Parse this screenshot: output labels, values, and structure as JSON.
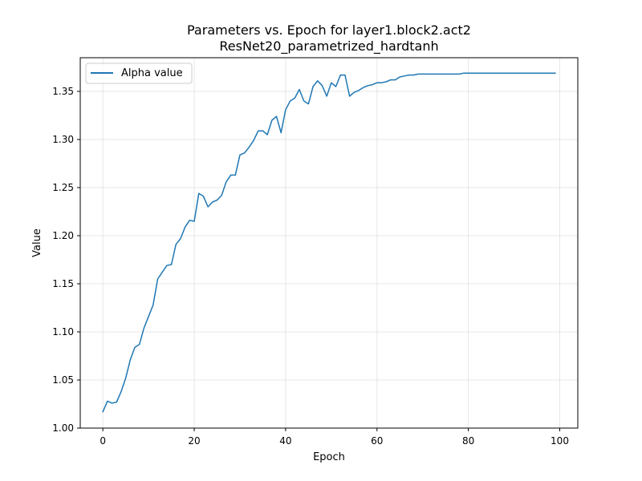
{
  "chart_data": {
    "type": "line",
    "title": "Parameters vs. Epoch for layer1.block2.act2",
    "subtitle": "ResNet20_parametrized_hardtanh",
    "xlabel": "Epoch",
    "ylabel": "Value",
    "xlim": [
      -4.95,
      103.95
    ],
    "ylim": [
      1.0,
      1.385
    ],
    "xticks": [
      0,
      20,
      40,
      60,
      80,
      100
    ],
    "yticks": [
      1.0,
      1.05,
      1.1,
      1.15,
      1.2,
      1.25,
      1.3,
      1.35
    ],
    "ytick_labels": [
      "1.00",
      "1.05",
      "1.10",
      "1.15",
      "1.20",
      "1.25",
      "1.30",
      "1.35"
    ],
    "grid": true,
    "legend": "top-left",
    "series": [
      {
        "name": "Alpha value",
        "color": "#1f77b4",
        "x": [
          0,
          1,
          2,
          3,
          4,
          5,
          6,
          7,
          8,
          9,
          10,
          11,
          12,
          13,
          14,
          15,
          16,
          17,
          18,
          19,
          20,
          21,
          22,
          23,
          24,
          25,
          26,
          27,
          28,
          29,
          30,
          31,
          32,
          33,
          34,
          35,
          36,
          37,
          38,
          39,
          40,
          41,
          42,
          43,
          44,
          45,
          46,
          47,
          48,
          49,
          50,
          51,
          52,
          53,
          54,
          55,
          56,
          57,
          58,
          59,
          60,
          61,
          62,
          63,
          64,
          65,
          66,
          67,
          68,
          69,
          70,
          71,
          72,
          73,
          74,
          75,
          76,
          77,
          78,
          79,
          80,
          81,
          82,
          83,
          84,
          85,
          86,
          87,
          88,
          89,
          90,
          91,
          92,
          93,
          94,
          95,
          96,
          97,
          98,
          99
        ],
        "values": [
          1.017,
          1.028,
          1.026,
          1.027,
          1.038,
          1.052,
          1.071,
          1.084,
          1.087,
          1.104,
          1.116,
          1.128,
          1.155,
          1.162,
          1.169,
          1.17,
          1.191,
          1.197,
          1.209,
          1.216,
          1.215,
          1.244,
          1.241,
          1.23,
          1.235,
          1.237,
          1.242,
          1.256,
          1.263,
          1.263,
          1.284,
          1.286,
          1.292,
          1.299,
          1.309,
          1.309,
          1.305,
          1.32,
          1.324,
          1.307,
          1.331,
          1.34,
          1.343,
          1.352,
          1.34,
          1.337,
          1.355,
          1.361,
          1.356,
          1.345,
          1.359,
          1.355,
          1.367,
          1.367,
          1.345,
          1.349,
          1.351,
          1.354,
          1.356,
          1.357,
          1.359,
          1.359,
          1.36,
          1.362,
          1.362,
          1.365,
          1.366,
          1.367,
          1.367,
          1.368,
          1.368,
          1.368,
          1.368,
          1.368,
          1.368,
          1.368,
          1.368,
          1.368,
          1.368,
          1.369,
          1.369,
          1.369,
          1.369,
          1.369,
          1.369,
          1.369,
          1.369,
          1.369,
          1.369,
          1.369,
          1.369,
          1.369,
          1.369,
          1.369,
          1.369,
          1.369,
          1.369,
          1.369,
          1.369,
          1.369
        ]
      }
    ]
  }
}
